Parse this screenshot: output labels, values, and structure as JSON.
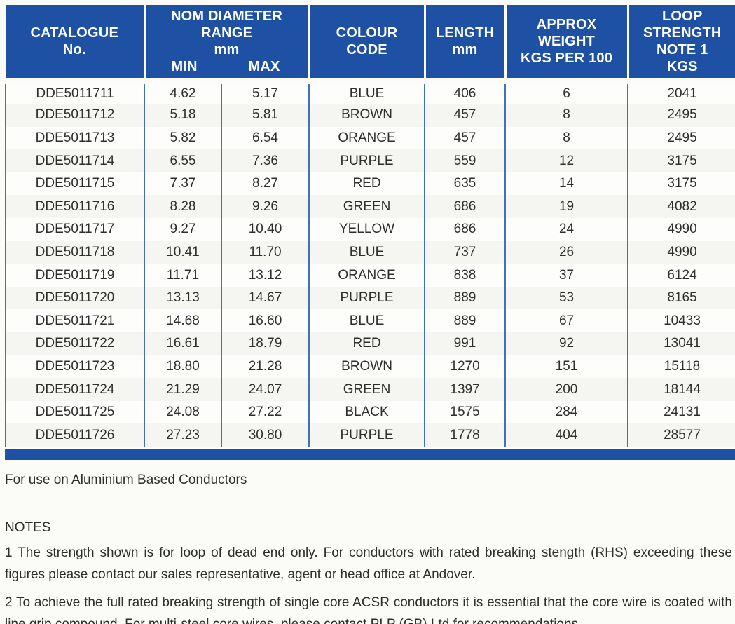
{
  "colors": {
    "header_blue": "#1e51a3",
    "grid_blue": "#4470b5",
    "page_background": "#fbfbf8"
  },
  "table": {
    "headers": {
      "catalogue_line1": "CATALOGUE",
      "catalogue_line2": "No.",
      "nom_diameter_line1": "NOM DIAMETER RANGE",
      "nom_diameter_line2": "mm",
      "min": "MIN",
      "max": "MAX",
      "colour_line1": "COLOUR",
      "colour_line2": "CODE",
      "length_line1": "LENGTH",
      "length_line2": "mm",
      "weight_line1": "APPROX WEIGHT",
      "weight_line2": "KGS PER 100",
      "loop_line1": "LOOP STRENGTH",
      "loop_line2": "NOTE 1",
      "loop_line3": "KGS"
    },
    "rows": [
      {
        "catalogue": "DDE5011711",
        "min": "4.62",
        "max": "5.17",
        "colour": "BLUE",
        "length": "406",
        "weight": "6",
        "loop": "2041"
      },
      {
        "catalogue": "DDE5011712",
        "min": "5.18",
        "max": "5.81",
        "colour": "BROWN",
        "length": "457",
        "weight": "8",
        "loop": "2495"
      },
      {
        "catalogue": "DDE5011713",
        "min": "5.82",
        "max": "6.54",
        "colour": "ORANGE",
        "length": "457",
        "weight": "8",
        "loop": "2495"
      },
      {
        "catalogue": "DDE5011714",
        "min": "6.55",
        "max": "7.36",
        "colour": "PURPLE",
        "length": "559",
        "weight": "12",
        "loop": "3175"
      },
      {
        "catalogue": "DDE5011715",
        "min": "7.37",
        "max": "8.27",
        "colour": "RED",
        "length": "635",
        "weight": "14",
        "loop": "3175"
      },
      {
        "catalogue": "DDE5011716",
        "min": "8.28",
        "max": "9.26",
        "colour": "GREEN",
        "length": "686",
        "weight": "19",
        "loop": "4082"
      },
      {
        "catalogue": "DDE5011717",
        "min": "9.27",
        "max": "10.40",
        "colour": "YELLOW",
        "length": "686",
        "weight": "24",
        "loop": "4990"
      },
      {
        "catalogue": "DDE5011718",
        "min": "10.41",
        "max": "11.70",
        "colour": "BLUE",
        "length": "737",
        "weight": "26",
        "loop": "4990"
      },
      {
        "catalogue": "DDE5011719",
        "min": "11.71",
        "max": "13.12",
        "colour": "ORANGE",
        "length": "838",
        "weight": "37",
        "loop": "6124"
      },
      {
        "catalogue": "DDE5011720",
        "min": "13.13",
        "max": "14.67",
        "colour": "PURPLE",
        "length": "889",
        "weight": "53",
        "loop": "8165"
      },
      {
        "catalogue": "DDE5011721",
        "min": "14.68",
        "max": "16.60",
        "colour": "BLUE",
        "length": "889",
        "weight": "67",
        "loop": "10433"
      },
      {
        "catalogue": "DDE5011722",
        "min": "16.61",
        "max": "18.79",
        "colour": "RED",
        "length": "991",
        "weight": "92",
        "loop": "13041"
      },
      {
        "catalogue": "DDE5011723",
        "min": "18.80",
        "max": "21.28",
        "colour": "BROWN",
        "length": "1270",
        "weight": "151",
        "loop": "15118"
      },
      {
        "catalogue": "DDE5011724",
        "min": "21.29",
        "max": "24.07",
        "colour": "GREEN",
        "length": "1397",
        "weight": "200",
        "loop": "18144"
      },
      {
        "catalogue": "DDE5011725",
        "min": "24.08",
        "max": "27.22",
        "colour": "BLACK",
        "length": "1575",
        "weight": "284",
        "loop": "24131"
      },
      {
        "catalogue": "DDE5011726",
        "min": "27.23",
        "max": "30.80",
        "colour": "PURPLE",
        "length": "1778",
        "weight": "404",
        "loop": "28577"
      }
    ]
  },
  "footer": {
    "usage": "For use on Aluminium Based Conductors",
    "notes_title": "NOTES",
    "note1": "1  The strength shown is for loop of dead end only.  For conductors with rated breaking stength  (RHS) exceeding these figures please contact our sales representative, agent or head office at Andover.",
    "note2": "2  To achieve the full rated breaking strength of single core ACSR conductors it is essential that the core wire is coated with line grip compound.  For multi-steel core wires, please contact PLP (GB) Ltd for recommendations."
  }
}
